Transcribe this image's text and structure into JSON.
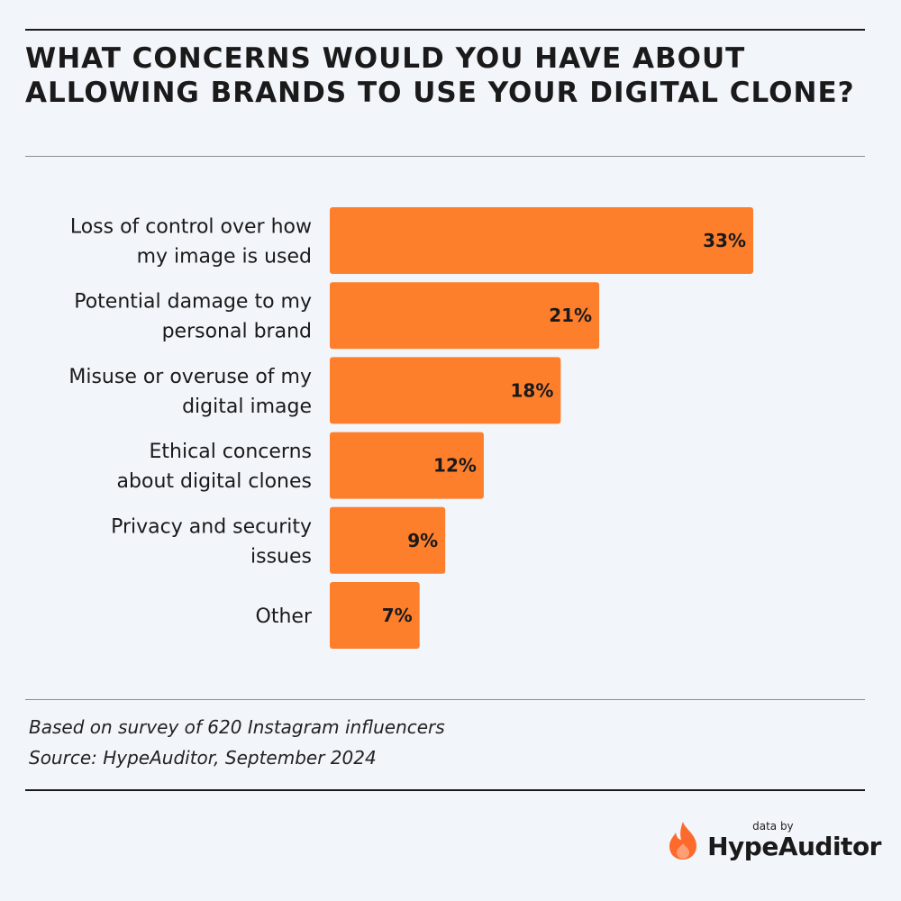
{
  "title": "WHAT CONCERNS WOULD YOU HAVE ABOUT ALLOWING BRANDS TO USE YOUR DIGITAL CLONE?",
  "chart_data": {
    "type": "bar",
    "orientation": "horizontal",
    "categories": [
      [
        "Loss of control over how",
        "my image is used"
      ],
      [
        "Potential damage to my",
        "personal brand"
      ],
      [
        "Misuse or overuse of my",
        "digital image"
      ],
      [
        "Ethical concerns",
        "about digital clones"
      ],
      [
        "Privacy and security",
        "issues"
      ],
      [
        "Other"
      ]
    ],
    "values": [
      33,
      21,
      18,
      12,
      9,
      7
    ],
    "value_labels": [
      "33%",
      "21%",
      "18%",
      "12%",
      "9%",
      "7%"
    ],
    "unit": "%",
    "bar_color": "#fd7f2c",
    "xlim": [
      0,
      33
    ],
    "grid": false,
    "legend": "none"
  },
  "notes": {
    "survey": "Based on survey of 620 Instagram influencers",
    "source": "Source: HypeAuditor, September 2024"
  },
  "brand": {
    "by": "data by",
    "name": "HypeAuditor",
    "icon": "flame-icon",
    "icon_color": "#fd6a2c"
  }
}
